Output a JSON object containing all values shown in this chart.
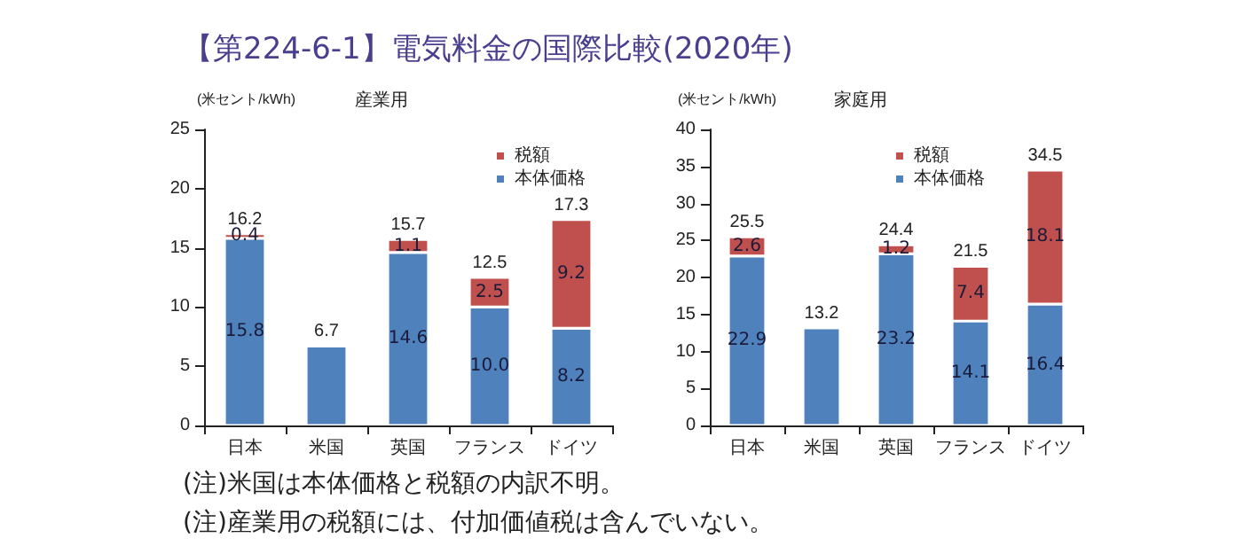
{
  "chart_data": [
    {
      "type": "bar",
      "title": "【第224-6-1】電気料金の国際比較(2020年)",
      "subtitle": "産業用",
      "ylabel": "(米セント/kWh)",
      "categories": [
        "日本",
        "米国",
        "英国",
        "フランス",
        "ドイツ"
      ],
      "stacked": true,
      "series": [
        {
          "name": "本体価格",
          "color": "#4f81bd",
          "values": [
            15.8,
            6.7,
            14.6,
            10.0,
            8.2
          ],
          "value_labels": [
            "15.8",
            null,
            "14.6",
            "10.0",
            "8.2"
          ]
        },
        {
          "name": "税額",
          "color": "#c0504d",
          "values": [
            0.4,
            null,
            1.1,
            2.5,
            9.2
          ],
          "value_labels": [
            "0.4",
            null,
            "1.1",
            "2.5",
            "9.2"
          ]
        }
      ],
      "totals": [
        "16.2",
        "6.7",
        "15.7",
        "12.5",
        "17.3"
      ],
      "ylim": [
        0,
        25
      ],
      "yticks": [
        0,
        5,
        10,
        15,
        20,
        25
      ],
      "grid": false,
      "legend": "top right",
      "annotations": [
        "(注)米国は本体価格と税額の内訳不明。",
        "(注)産業用の税額には、付加価値税は含んでいない。"
      ]
    },
    {
      "type": "bar",
      "subtitle": "家庭用",
      "ylabel": "(米セント/kWh)",
      "categories": [
        "日本",
        "米国",
        "英国",
        "フランス",
        "ドイツ"
      ],
      "stacked": true,
      "series": [
        {
          "name": "本体価格",
          "color": "#4f81bd",
          "values": [
            22.9,
            13.2,
            23.2,
            14.1,
            16.4
          ],
          "value_labels": [
            "22.9",
            null,
            "23.2",
            "14.1",
            "16.4"
          ]
        },
        {
          "name": "税額",
          "color": "#c0504d",
          "values": [
            2.6,
            null,
            1.2,
            7.4,
            18.1
          ],
          "value_labels": [
            "2.6",
            null,
            "1.2",
            "7.4",
            "18.1"
          ]
        }
      ],
      "totals": [
        "25.5",
        "13.2",
        "24.4",
        "21.5",
        "34.5"
      ],
      "ylim": [
        0,
        40
      ],
      "yticks": [
        0,
        5,
        10,
        15,
        20,
        25,
        30,
        35,
        40
      ],
      "grid": false,
      "legend": "top right"
    }
  ]
}
